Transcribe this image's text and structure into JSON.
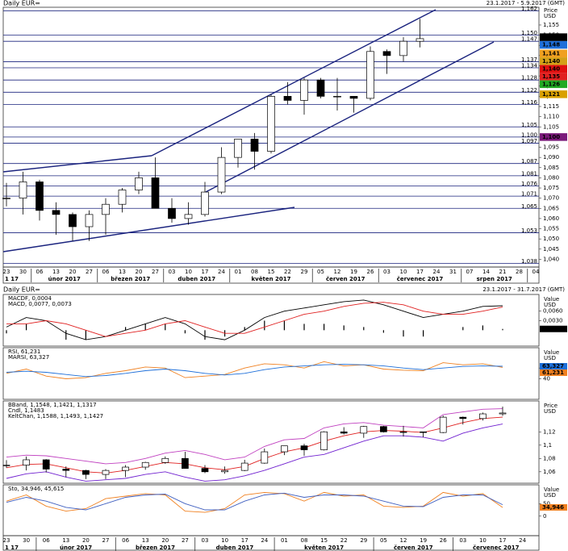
{
  "chart_data": [
    {
      "type": "candlestick",
      "title": "Daily EUR=",
      "subtitle": "23.1.2017 - 5.9.2017 (GMT)",
      "y_label": [
        "Price",
        "USD"
      ],
      "categories": [
        "23",
        "30",
        "06",
        "13",
        "20",
        "27",
        "06",
        "13",
        "20",
        "27",
        "03",
        "10",
        "17",
        "24",
        "01",
        "08",
        "15",
        "22",
        "29",
        "05",
        "12",
        "19",
        "26",
        "03",
        "10",
        "17",
        "24",
        "31",
        "07",
        "14",
        "21",
        "28",
        "04"
      ],
      "months": [
        "1 17",
        "únor 2017",
        "březen 2017",
        "duben 2017",
        "květen 2017",
        "červen 2017",
        "červenec 2017",
        "srpen 2017"
      ],
      "open": [
        1.07,
        1.07,
        1.078,
        1.064,
        1.062,
        1.056,
        1.062,
        1.067,
        1.074,
        1.08,
        1.065,
        1.06,
        1.062,
        1.073,
        1.09,
        1.099,
        1.093,
        1.12,
        1.118,
        1.128,
        1.12,
        1.12,
        1.119,
        1.142,
        1.14,
        1.147,
        null,
        null,
        null,
        null,
        null,
        null,
        null
      ],
      "high": [
        1.0775,
        1.083,
        1.079,
        1.068,
        1.063,
        1.064,
        1.07,
        1.075,
        1.083,
        1.09,
        1.07,
        1.068,
        1.078,
        1.095,
        1.099,
        1.102,
        1.121,
        1.127,
        1.129,
        1.129,
        1.129,
        1.12,
        1.1445,
        1.143,
        1.149,
        1.158,
        null,
        null,
        null,
        null,
        null,
        null,
        null
      ],
      "low": [
        1.066,
        1.062,
        1.059,
        1.052,
        1.049,
        1.049,
        1.052,
        1.063,
        1.072,
        1.065,
        1.058,
        1.057,
        1.061,
        1.072,
        1.085,
        1.084,
        1.092,
        1.116,
        1.111,
        1.119,
        1.113,
        1.112,
        1.118,
        1.131,
        1.137,
        1.144,
        null,
        null,
        null,
        null,
        null,
        null,
        null
      ],
      "close": [
        1.07,
        1.078,
        1.064,
        1.062,
        1.056,
        1.062,
        1.067,
        1.074,
        1.08,
        1.065,
        1.06,
        1.062,
        1.073,
        1.09,
        1.099,
        1.093,
        1.12,
        1.118,
        1.128,
        1.12,
        1.12,
        1.119,
        1.142,
        1.14,
        1.147,
        1.1483,
        null,
        null,
        null,
        null,
        null,
        null,
        null
      ],
      "ylim": [
        1.0366,
        1.1637
      ],
      "yticks": [
        {
          "value": 1.04,
          "label": "1,040"
        },
        {
          "value": 1.045,
          "label": "1,045"
        },
        {
          "value": 1.05,
          "label": "1,050"
        },
        {
          "value": 1.055,
          "label": "1,055"
        },
        {
          "value": 1.06,
          "label": "1,060"
        },
        {
          "value": 1.065,
          "label": "1,065"
        },
        {
          "value": 1.07,
          "label": "1,070"
        },
        {
          "value": 1.075,
          "label": "1,075"
        },
        {
          "value": 1.08,
          "label": "1,080"
        },
        {
          "value": 1.085,
          "label": "1,085"
        },
        {
          "value": 1.09,
          "label": "1,090"
        },
        {
          "value": 1.095,
          "label": "1,095"
        },
        {
          "value": 1.1,
          "label": "1,100"
        },
        {
          "value": 1.105,
          "label": "1,105"
        },
        {
          "value": 1.11,
          "label": "1,110"
        },
        {
          "value": 1.115,
          "label": "1,115"
        },
        {
          "value": 1.12,
          "label": "1,120"
        },
        {
          "value": 1.125,
          "label": "1,125"
        },
        {
          "value": 1.13,
          "label": "1,130"
        },
        {
          "value": 1.135,
          "label": "1,135"
        },
        {
          "value": 1.14,
          "label": "1,140"
        },
        {
          "value": 1.145,
          "label": "1,145"
        },
        {
          "value": 1.15,
          "label": "1,150"
        },
        {
          "value": 1.155,
          "label": "1,155"
        }
      ],
      "levels": [
        {
          "value": 1.162,
          "label": "1,162"
        },
        {
          "value": 1.15,
          "label": "1,150"
        },
        {
          "value": 1.147,
          "label": "1,147"
        },
        {
          "value": 1.137,
          "label": "1,137"
        },
        {
          "value": 1.134,
          "label": "1,134"
        },
        {
          "value": 1.128,
          "label": "1,128"
        },
        {
          "value": 1.122,
          "label": "1,122"
        },
        {
          "value": 1.116,
          "label": "1,116"
        },
        {
          "value": 1.105,
          "label": "1,105"
        },
        {
          "value": 1.1,
          "label": "1,100"
        },
        {
          "value": 1.097,
          "label": "1,097"
        },
        {
          "value": 1.087,
          "label": "1,087"
        },
        {
          "value": 1.081,
          "label": "1,081"
        },
        {
          "value": 1.076,
          "label": "1,076"
        },
        {
          "value": 1.071,
          "label": "1,071"
        },
        {
          "value": 1.065,
          "label": "1,065"
        },
        {
          "value": 1.053,
          "label": "1,053"
        },
        {
          "value": 1.038,
          "label": "1,038"
        }
      ],
      "level_color": "#1a237e",
      "badges": [
        {
          "value": 1.149,
          "label": "1,149",
          "color": "#000000",
          "text_color": "#ffffff"
        },
        {
          "value": 1.148,
          "label": "1,148",
          "color": "#1e6fd9",
          "text_color": "#ffffff"
        },
        {
          "value": 1.141,
          "label": "1,141",
          "color": "#f0a020",
          "text_color": "#000000"
        },
        {
          "value": 1.14,
          "label": "1,140",
          "color": "#d4a017",
          "text_color": "#000000"
        },
        {
          "value": 1.14,
          "label": "1,140",
          "color": "#e01010",
          "text_color": "#000000"
        },
        {
          "value": 1.135,
          "label": "1,135",
          "color": "#e02020",
          "text_color": "#000000"
        },
        {
          "value": 1.126,
          "label": "1,126",
          "color": "#22aa22",
          "text_color": "#ffffff"
        },
        {
          "value": 1.121,
          "label": "1,121",
          "color": "#d9a000",
          "text_color": "#000000"
        },
        {
          "value": 1.1,
          "label": "1,100",
          "color": "#7a1a7a",
          "text_color": "#ffffff"
        }
      ]
    },
    {
      "type": "line",
      "y_label": [
        "Value",
        "USD"
      ],
      "legend": [
        {
          "label": "MACDF, 0,0004",
          "color": "#000000"
        },
        {
          "label": "MACD, 0,0077, 0,0073",
          "color": "#e02020"
        }
      ],
      "histogram": {
        "color": "#000000",
        "values": [
          -0.001,
          0.002,
          0,
          -0.003,
          -0.003,
          0,
          0.001,
          0.002,
          0.002,
          -0.001,
          -0.003,
          -0.002,
          0.001,
          0.003,
          0.003,
          0.002,
          0.002,
          0.0015,
          0.001,
          -0.0008,
          -0.002,
          -0.002,
          0,
          0.001,
          0.0015,
          0.0004
        ]
      },
      "series": [
        {
          "color": "#000000",
          "values": [
            0.001,
            0.004,
            0.003,
            -0.001,
            -0.003,
            -0.002,
            0.0,
            0.002,
            0.004,
            0.002,
            -0.002,
            -0.003,
            0.0,
            0.004,
            0.006,
            0.007,
            0.008,
            0.009,
            0.0095,
            0.008,
            0.006,
            0.004,
            0.005,
            0.006,
            0.0075,
            0.0077
          ]
        },
        {
          "color": "#e02020",
          "values": [
            0.002,
            0.002,
            0.003,
            0.002,
            0.0,
            -0.002,
            -0.001,
            0.0,
            0.002,
            0.003,
            0.001,
            -0.001,
            -0.001,
            0.001,
            0.003,
            0.005,
            0.006,
            0.0075,
            0.0085,
            0.0088,
            0.008,
            0.006,
            0.005,
            0.005,
            0.006,
            0.0073
          ]
        }
      ],
      "ylim": [
        -0.00475,
        0.01075
      ],
      "yticks": [
        {
          "value": 0.006,
          "label": "0,0060"
        },
        {
          "value": 0.003,
          "label": "0,0030"
        }
      ],
      "badges": [
        {
          "value": 0.0004,
          "label": "0,0004",
          "color": "#000000",
          "text_color": "#ffffff"
        }
      ]
    },
    {
      "type": "line",
      "y_label": [
        "Value",
        "USD"
      ],
      "legend": [
        {
          "label": "RSI, 61,231",
          "color": "#f08020"
        },
        {
          "label": "MARSI, 63,327",
          "color": "#1e6fd9"
        }
      ],
      "series": [
        {
          "color": "#f08020",
          "values": [
            50,
            58,
            45,
            40,
            42,
            50,
            55,
            62,
            60,
            42,
            45,
            48,
            60,
            68,
            66,
            60,
            72,
            64,
            66,
            58,
            56,
            55,
            70,
            66,
            68,
            61.231
          ]
        },
        {
          "color": "#1e6fd9",
          "values": [
            52,
            54,
            52,
            48,
            44,
            46,
            50,
            55,
            58,
            55,
            50,
            47,
            50,
            57,
            62,
            64,
            66,
            67,
            66,
            64,
            60,
            57,
            60,
            63,
            64,
            63.327
          ]
        }
      ],
      "ylim": [
        3,
        95
      ],
      "yticks": [
        60,
        40
      ],
      "badges": [
        {
          "value": 63.327,
          "label": "63,327",
          "color": "#1e6fd9",
          "text_color": "#ffffff"
        },
        {
          "value": 61.231,
          "label": "61,231",
          "color": "#f08020",
          "text_color": "#000000"
        }
      ]
    },
    {
      "type": "bands",
      "y_label": [
        "Price",
        "USD"
      ],
      "legend": [
        {
          "label": "BBand, 1,1548, 1,1421, 1,1317",
          "color": "#6a1b9a"
        },
        {
          "label": "Cndl, 1,1483",
          "color": "#000000"
        },
        {
          "label": "KeltChan, 1,1588, 1,1493, 1,1427",
          "color": "#e02020"
        }
      ],
      "series": [
        {
          "color": "#c040c0",
          "values": [
            1.082,
            1.085,
            1.084,
            1.08,
            1.076,
            1.072,
            1.074,
            1.08,
            1.088,
            1.092,
            1.086,
            1.078,
            1.082,
            1.098,
            1.108,
            1.11,
            1.126,
            1.132,
            1.134,
            1.13,
            1.128,
            1.126,
            1.146,
            1.15,
            1.154,
            1.1548
          ]
        },
        {
          "color": "#e02020",
          "values": [
            1.066,
            1.071,
            1.072,
            1.066,
            1.06,
            1.058,
            1.062,
            1.068,
            1.074,
            1.072,
            1.066,
            1.063,
            1.068,
            1.08,
            1.09,
            1.096,
            1.106,
            1.114,
            1.12,
            1.122,
            1.121,
            1.119,
            1.126,
            1.134,
            1.14,
            1.1421
          ]
        },
        {
          "color": "#7020d0",
          "values": [
            1.05,
            1.057,
            1.06,
            1.052,
            1.046,
            1.048,
            1.05,
            1.056,
            1.06,
            1.052,
            1.046,
            1.048,
            1.054,
            1.062,
            1.072,
            1.082,
            1.086,
            1.096,
            1.106,
            1.114,
            1.114,
            1.112,
            1.106,
            1.118,
            1.126,
            1.1317
          ]
        }
      ],
      "ylim": [
        1.044,
        1.164
      ],
      "yticks": [
        {
          "value": 1.12,
          "label": "1,12"
        },
        {
          "value": 1.1,
          "label": "1,1"
        },
        {
          "value": 1.08,
          "label": "1,08"
        },
        {
          "value": 1.06,
          "label": "1,06"
        }
      ]
    },
    {
      "type": "line",
      "y_label": [
        "Value",
        "USD"
      ],
      "legend": [
        {
          "label": "Sto, 34,946, 45,615",
          "color": "#f08020"
        }
      ],
      "series": [
        {
          "color": "#f08020",
          "values": [
            60,
            85,
            40,
            20,
            30,
            70,
            80,
            90,
            85,
            20,
            15,
            30,
            85,
            95,
            90,
            60,
            95,
            80,
            85,
            40,
            35,
            40,
            95,
            80,
            90,
            34.946
          ]
        },
        {
          "color": "#4060c0",
          "values": [
            55,
            75,
            60,
            35,
            25,
            50,
            75,
            85,
            88,
            50,
            25,
            25,
            60,
            85,
            92,
            75,
            85,
            85,
            80,
            60,
            40,
            38,
            75,
            85,
            85,
            45.615
          ]
        }
      ],
      "ylim": [
        -75,
        118.75
      ],
      "yticks": [
        50,
        0
      ],
      "badges": [
        {
          "value": 34.946,
          "label": "34,946",
          "color": "#f08020",
          "text_color": "#000000"
        }
      ]
    }
  ],
  "lower_header": {
    "title": "Daily EUR=",
    "subtitle": "23.1.2017 - 31.7.2017 (GMT)"
  },
  "lower_x_axis": {
    "categories": [
      "23",
      "30",
      "06",
      "13",
      "20",
      "27",
      "06",
      "13",
      "20",
      "27",
      "03",
      "10",
      "17",
      "24",
      "01",
      "08",
      "15",
      "22",
      "29",
      "05",
      "12",
      "19",
      "26",
      "03",
      "10",
      "17",
      "24"
    ],
    "months": [
      "1 17",
      "únor 2017",
      "březen 2017",
      "duben 2017",
      "květen 2017",
      "červen 2017",
      "červenec 2017"
    ]
  }
}
